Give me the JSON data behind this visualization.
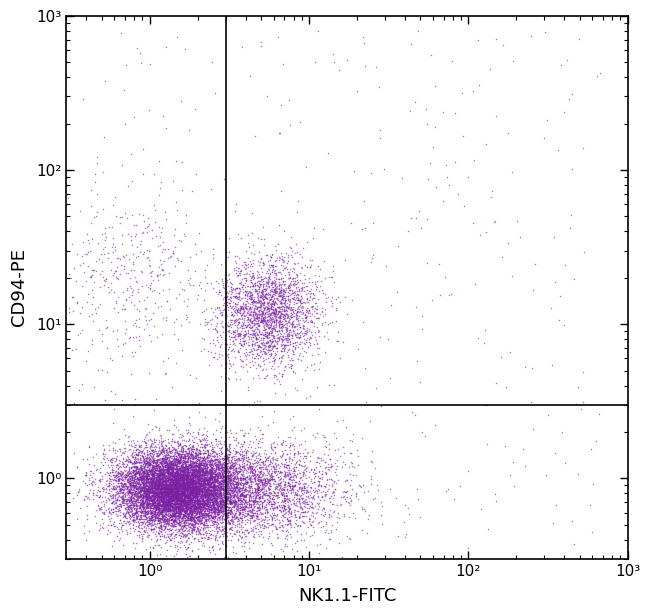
{
  "title": "",
  "xlabel": "NK1.1-FITC",
  "ylabel": "CD94-PE",
  "xlim_log": [
    0.3,
    1000
  ],
  "ylim_log": [
    0.3,
    1000
  ],
  "quadrant_x": 3.0,
  "quadrant_y": 3.0,
  "dot_color": "#7B1FA2",
  "dot_color2": "#AB47BC",
  "dot_alpha": 0.6,
  "dot_size": 1.2,
  "background_color": "#ffffff",
  "seed": 42
}
